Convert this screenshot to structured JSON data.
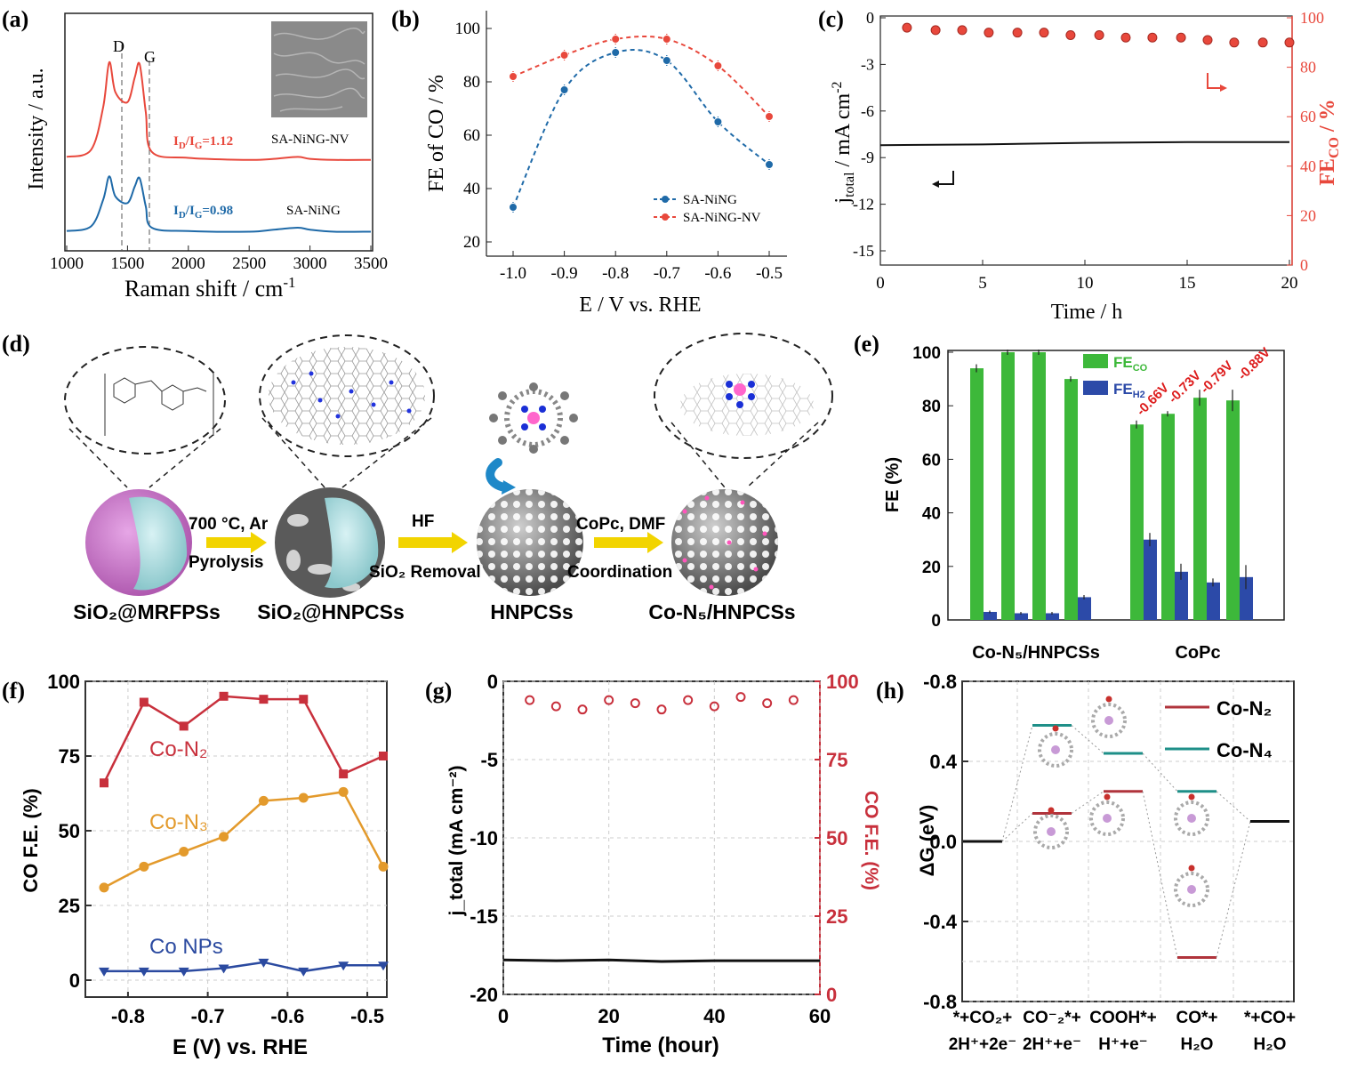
{
  "panels": {
    "a": {
      "letter": "(a)",
      "ylabel": "Intensity / a.u.",
      "xlabel_main": "Raman shift / cm",
      "xlabel_sup": "-1",
      "xticks": [
        "1000",
        "1500",
        "2000",
        "2500",
        "3000",
        "3500"
      ],
      "peak_D": "D",
      "peak_G": "G",
      "ratio_top": "=1.12",
      "ratio_bottom": "=0.98",
      "ratio_prefix_I": "I",
      "ratio_sub_D": "D",
      "ratio_slash": "/I",
      "ratio_sub_G": "G",
      "label_top": "SA-NiNG-NV",
      "label_bottom": "SA-NiNG"
    },
    "b": {
      "letter": "(b)",
      "ylabel": "FE of CO / %",
      "xlabel": "E / V vs. RHE",
      "xticks": [
        "-1.0",
        "-0.9",
        "-0.8",
        "-0.7",
        "-0.6",
        "-0.5"
      ],
      "yticks": [
        "20",
        "40",
        "60",
        "80",
        "100"
      ],
      "legend": [
        "SA-NiNG",
        "SA-NiNG-NV"
      ]
    },
    "c": {
      "letter": "(c)",
      "ylabel_main": "j",
      "ylabel_sub": "total",
      "ylabel_rest": " / mA cm",
      "ylabel_sup": "-2",
      "y2label_main": "FE",
      "y2label_sub": "CO",
      "y2label_rest": " / %",
      "xlabel": "Time / h",
      "xticks": [
        "0",
        "5",
        "10",
        "15",
        "20"
      ],
      "yticks": [
        "0",
        "-3",
        "-6",
        "-9",
        "-12",
        "-15"
      ],
      "y2ticks": [
        "100",
        "80",
        "60",
        "40",
        "20",
        "0"
      ]
    },
    "d": {
      "letter": "(d)",
      "step1_top": "700 °C, Ar",
      "step1_bottom": "Pyrolysis",
      "step2_top": "HF",
      "step2_bottom": "SiO₂ Removal",
      "step3_top": "CoPc, DMF",
      "step3_bottom": "Coordination",
      "label1": "SiO₂@MRFPSs",
      "label2": "SiO₂@HNPCSs",
      "label3": "HNPCSs",
      "label4": "Co-N₅/HNPCSs"
    },
    "e": {
      "letter": "(e)",
      "ylabel": "FE (%)",
      "yticks": [
        "0",
        "20",
        "40",
        "60",
        "80",
        "100"
      ],
      "group1": "Co-N₅/HNPCSs",
      "group2": "CoPc",
      "legend_co": "FE",
      "legend_co_sub": "CO",
      "legend_h2": "FE",
      "legend_h2_sub": "H2",
      "potentials": [
        "-0.66V",
        "-0.73V",
        "-0.79V",
        "-0.88V"
      ]
    },
    "f": {
      "letter": "(f)",
      "ylabel": "CO F.E. (%)",
      "xlabel": "E (V) vs. RHE",
      "xticks": [
        "-0.8",
        "-0.7",
        "-0.6",
        "-0.5"
      ],
      "yticks": [
        "0",
        "25",
        "50",
        "75",
        "100"
      ],
      "series_labels": [
        "Co-N₂",
        "Co-N₃",
        "Co NPs"
      ]
    },
    "g": {
      "letter": "(g)",
      "ylabel": "j_total (mA cm⁻²)",
      "y2label": "CO F.E. (%)",
      "xlabel": "Time (hour)",
      "xticks": [
        "0",
        "20",
        "40",
        "60"
      ],
      "yticks": [
        "0",
        "-5",
        "-10",
        "-15",
        "-20"
      ],
      "y2ticks": [
        "100",
        "75",
        "50",
        "25",
        "0"
      ]
    },
    "h": {
      "letter": "(h)",
      "ylabel": "ΔG (eV)",
      "yticks": [
        "-0.8",
        "0.4",
        "0.0",
        "-0.4",
        "-0.8"
      ],
      "legend": [
        "Co-N₂",
        "Co-N₄"
      ],
      "x_top": [
        "*+CO₂+",
        "CO⁻₂*+",
        "COOH*+",
        "CO*+",
        "*+CO+"
      ],
      "x_bottom": [
        "2H⁺+2e⁻",
        "2H⁺+e⁻",
        "H⁺+e⁻",
        "H₂O",
        "H₂O"
      ]
    }
  },
  "colors": {
    "red": "#e8483c",
    "blue": "#1f6aa8",
    "green": "#3db83a",
    "darkblue": "#2c4aa8",
    "crimson": "#c8303c",
    "orange": "#e39a2c",
    "navy": "#2b4aa0",
    "teal": "#1e8f88",
    "brown": "#b0343c"
  },
  "chart_data": [
    {
      "panel": "a",
      "type": "line",
      "xlim": [
        1000,
        3500
      ],
      "series": [
        {
          "name": "SA-NiNG-NV",
          "x": [
            1000,
            1200,
            1300,
            1350,
            1400,
            1500,
            1560,
            1600,
            1650,
            1700,
            2000,
            2500,
            2700,
            2900,
            3000,
            3200,
            3500
          ],
          "y": [
            0.05,
            0.12,
            0.55,
            1.0,
            0.7,
            0.6,
            0.85,
            0.98,
            0.5,
            0.1,
            0.04,
            0.02,
            0.03,
            0.05,
            0.03,
            0.02,
            0.02
          ]
        },
        {
          "name": "SA-NiNG",
          "x": [
            1000,
            1200,
            1300,
            1350,
            1400,
            1500,
            1560,
            1600,
            1650,
            1700,
            2000,
            2500,
            2700,
            2900,
            3000,
            3200,
            3500
          ],
          "y": [
            0.03,
            0.1,
            0.5,
            0.85,
            0.55,
            0.45,
            0.7,
            0.82,
            0.4,
            0.08,
            0.03,
            0.02,
            0.05,
            0.08,
            0.05,
            0.02,
            0.02
          ]
        }
      ]
    },
    {
      "panel": "b",
      "type": "line",
      "x": [
        -1.0,
        -0.9,
        -0.8,
        -0.7,
        -0.6,
        -0.5
      ],
      "ylim": [
        15,
        100
      ],
      "series": [
        {
          "name": "SA-NiNG",
          "values": [
            33,
            77,
            91,
            88,
            65,
            49
          ]
        },
        {
          "name": "SA-NiNG-NV",
          "values": [
            82,
            90,
            96,
            96,
            86,
            67
          ]
        }
      ]
    },
    {
      "panel": "c",
      "type": "line",
      "xlim": [
        0,
        20
      ],
      "series": [
        {
          "name": "j_total",
          "x": [
            0,
            5,
            10,
            15,
            20
          ],
          "y": [
            -8.2,
            -8.15,
            -8.05,
            -8.0,
            -8.0
          ]
        },
        {
          "name": "FE_CO",
          "x": [
            1.3,
            2.7,
            4.0,
            5.3,
            6.7,
            8.0,
            9.3,
            10.7,
            12.0,
            13.3,
            14.7,
            16.0,
            17.3,
            18.7,
            20.0
          ],
          "y": [
            96,
            95,
            95,
            94,
            94,
            94,
            93,
            93,
            92,
            92,
            92,
            91,
            90,
            90,
            90
          ]
        }
      ]
    },
    {
      "panel": "e",
      "type": "bar",
      "categories": [
        "Co-N₅/HNPCSs 1",
        "Co-N₅/HNPCSs 2",
        "Co-N₅/HNPCSs 3",
        "Co-N₅/HNPCSs 4",
        "CoPc -0.66V",
        "CoPc -0.73V",
        "CoPc -0.79V",
        "CoPc -0.88V"
      ],
      "series": [
        {
          "name": "FE_CO",
          "values": [
            94,
            100,
            100,
            90,
            73,
            77,
            83,
            82
          ]
        },
        {
          "name": "FE_H2",
          "values": [
            3,
            2.5,
            2.5,
            8.5,
            30,
            18,
            14,
            16
          ]
        }
      ],
      "ylim": [
        0,
        100
      ]
    },
    {
      "panel": "f",
      "type": "line",
      "x": [
        -0.83,
        -0.78,
        -0.73,
        -0.68,
        -0.63,
        -0.58,
        -0.53,
        -0.48
      ],
      "ylim": [
        0,
        100
      ],
      "series": [
        {
          "name": "Co-N₂",
          "values": [
            66,
            93,
            85,
            95,
            94,
            94,
            69,
            75
          ]
        },
        {
          "name": "Co-N₃",
          "values": [
            31,
            38,
            43,
            48,
            60,
            61,
            63,
            38
          ]
        },
        {
          "name": "Co NPs",
          "values": [
            3,
            3,
            3,
            4,
            6,
            3,
            5,
            5
          ]
        }
      ]
    },
    {
      "panel": "g",
      "type": "line",
      "xlim": [
        0,
        60
      ],
      "series": [
        {
          "name": "j_total",
          "x": [
            0,
            10,
            20,
            30,
            40,
            50,
            60
          ],
          "y": [
            -17.8,
            -17.85,
            -17.8,
            -17.9,
            -17.85,
            -17.85,
            -17.85
          ]
        },
        {
          "name": "CO F.E.",
          "x": [
            5,
            10,
            15,
            20,
            25,
            30,
            35,
            40,
            45,
            50,
            55
          ],
          "y": [
            94,
            92,
            91,
            94,
            93,
            91,
            94,
            92,
            95,
            93,
            94
          ]
        }
      ]
    },
    {
      "panel": "h",
      "type": "line",
      "categories": [
        "*+CO₂+2H⁺+2e⁻",
        "CO⁻₂*+2H⁺+e⁻",
        "COOH*+H⁺+e⁻",
        "CO*+H₂O",
        "*+CO+H₂O"
      ],
      "ylim": [
        -0.8,
        0.8
      ],
      "series": [
        {
          "name": "Co-N₂",
          "values": [
            0.0,
            0.14,
            0.25,
            -0.58,
            0.1
          ]
        },
        {
          "name": "Co-N₄",
          "values": [
            0.0,
            0.58,
            0.44,
            0.25,
            0.1
          ]
        }
      ]
    }
  ]
}
